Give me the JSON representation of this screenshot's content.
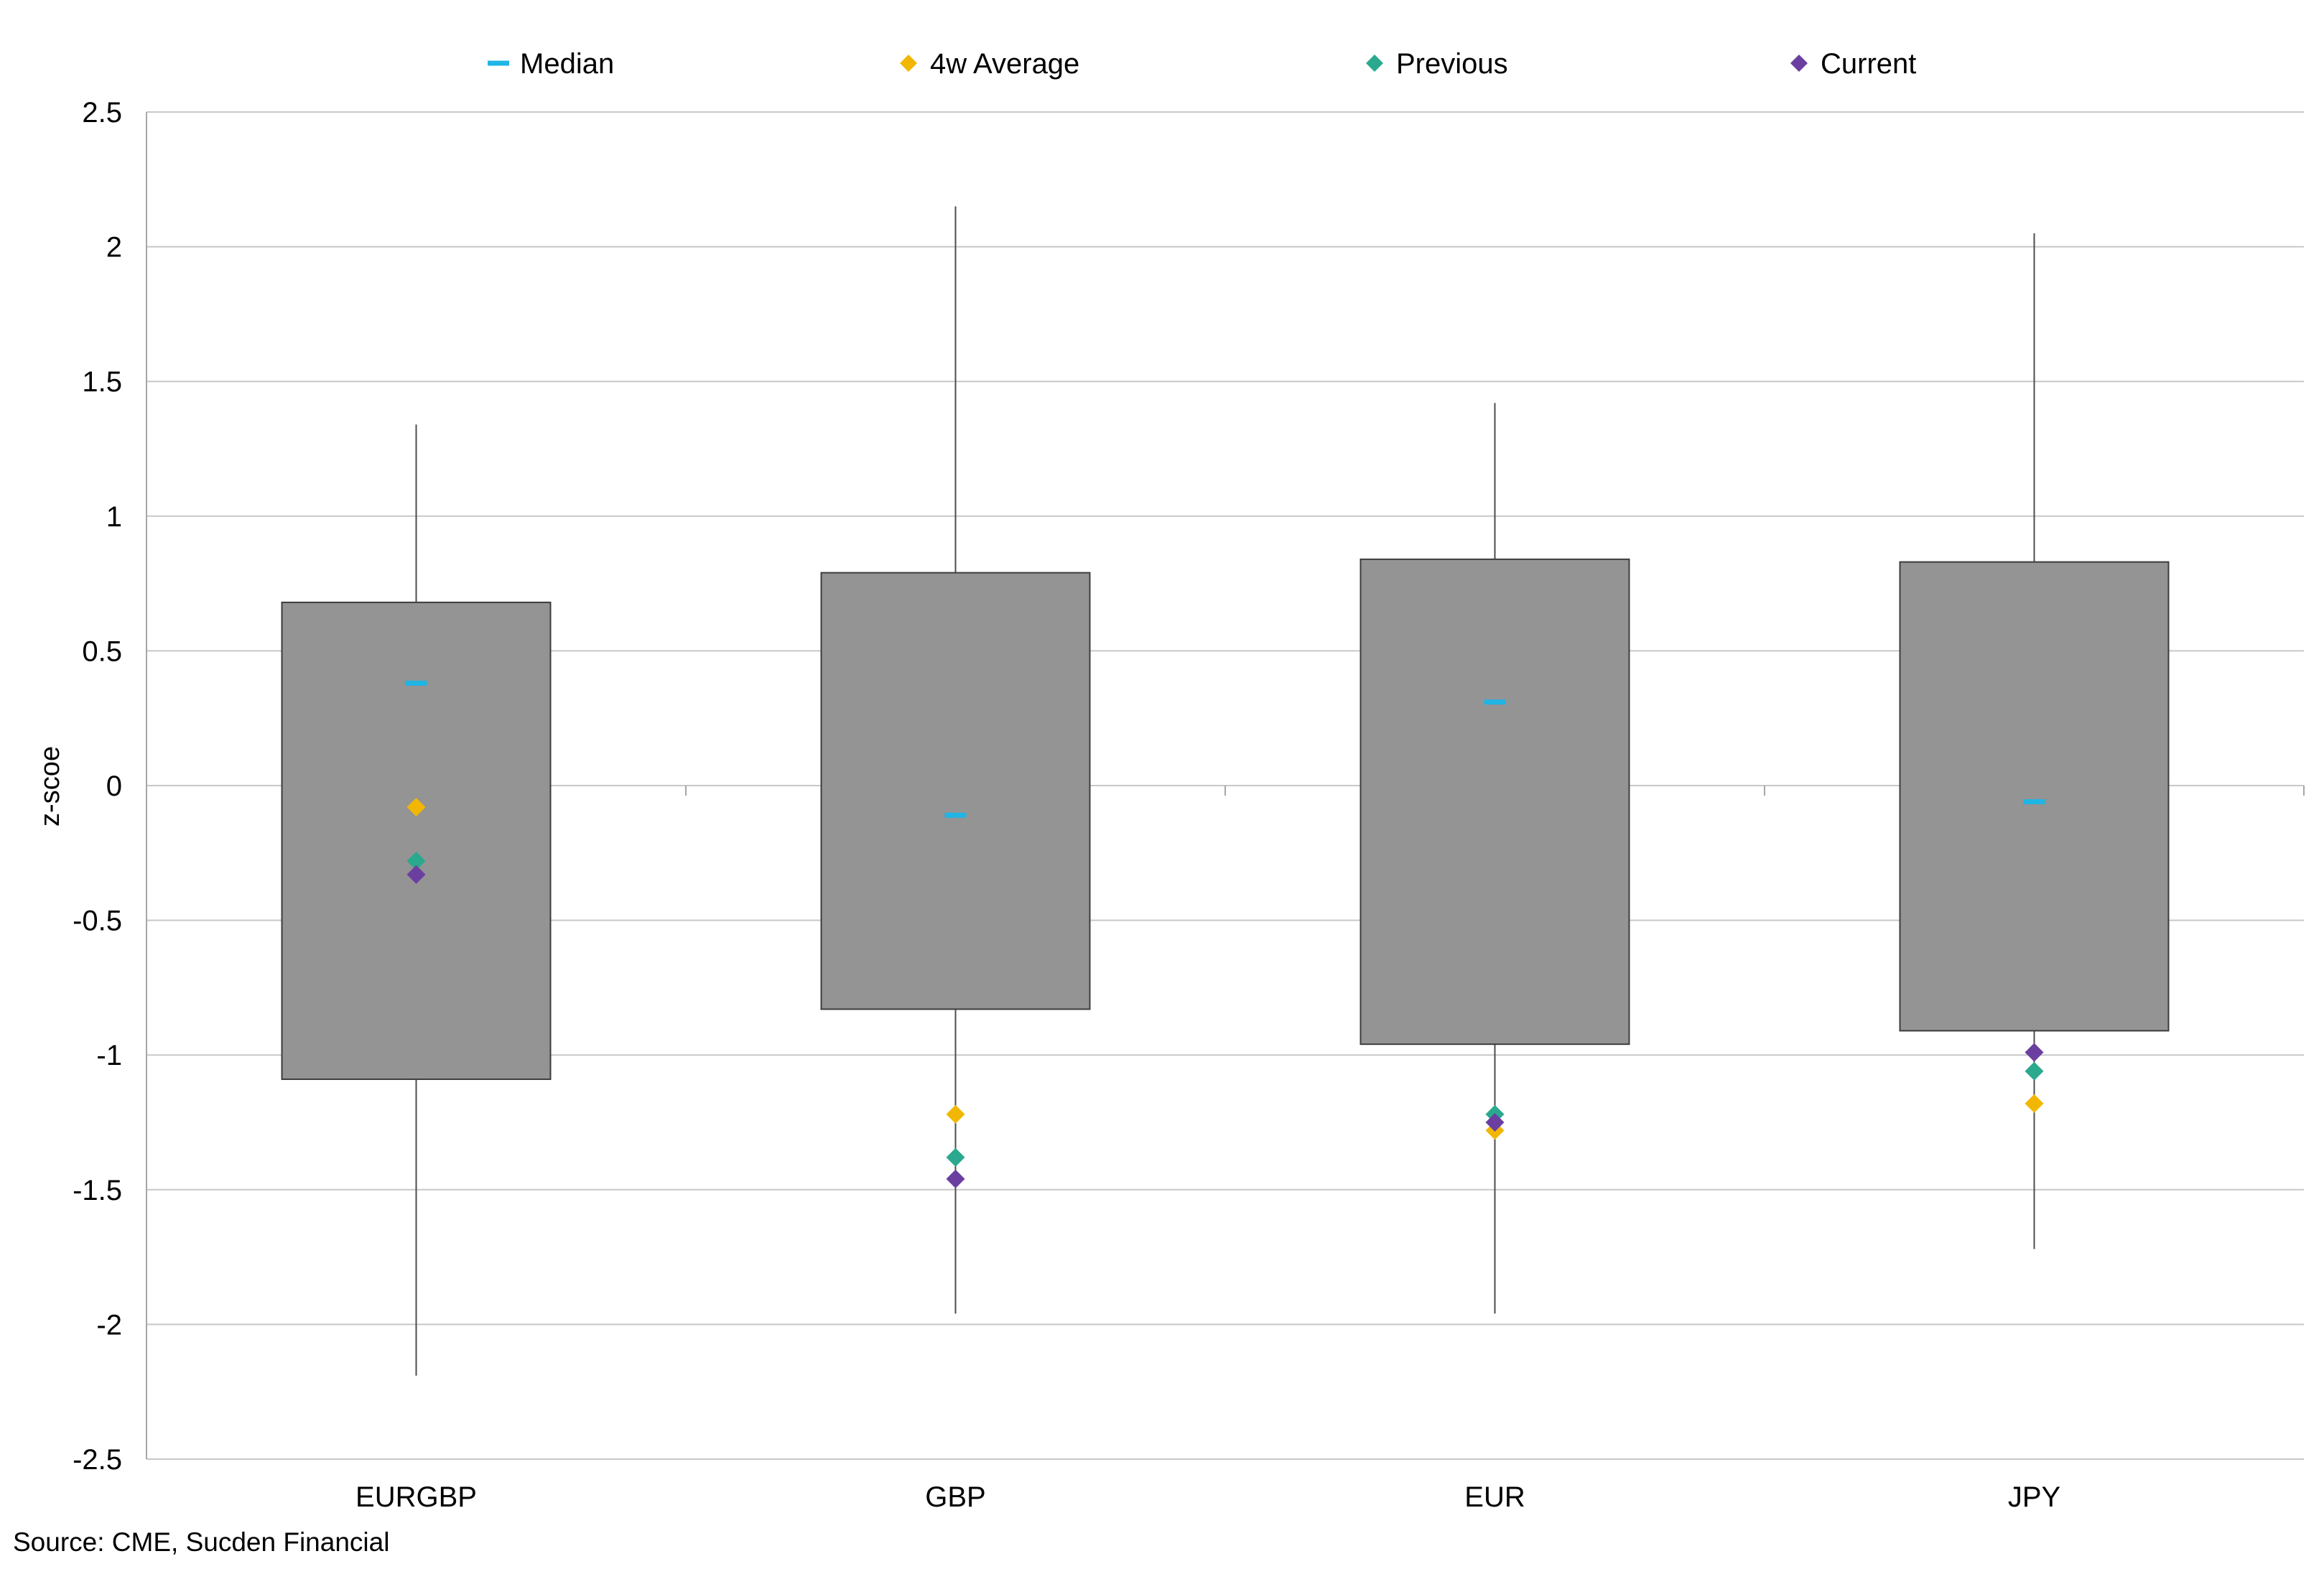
{
  "chart_data": {
    "type": "box",
    "title": "",
    "xlabel": "",
    "ylabel": "z-scoe",
    "ylim": [
      -2.5,
      2.5
    ],
    "yticks": [
      2.5,
      2,
      1.5,
      1,
      0.5,
      0,
      -0.5,
      -1,
      -1.5,
      -2,
      -2.5
    ],
    "ytick_labels": [
      "2.5",
      "2",
      "1.5",
      "1",
      "0.5",
      "0",
      "-0.5",
      "-1",
      "-1.5",
      "-2",
      "-2.5"
    ],
    "grid": "horizontal",
    "legend_position": "top",
    "categories": [
      "EURGBP",
      "GBP",
      "EUR",
      "JPY"
    ],
    "boxes": [
      {
        "category": "EURGBP",
        "min": -2.19,
        "q1": -1.09,
        "q3": 0.68,
        "max": 1.34
      },
      {
        "category": "GBP",
        "min": -1.96,
        "q1": -0.83,
        "q3": 0.79,
        "max": 2.15
      },
      {
        "category": "EUR",
        "min": -1.96,
        "q1": -0.96,
        "q3": 0.84,
        "max": 1.42
      },
      {
        "category": "JPY",
        "min": -1.72,
        "q1": -0.91,
        "q3": 0.83,
        "max": 2.05
      }
    ],
    "series": [
      {
        "name": "Median",
        "marker": "dash",
        "color": "#1fb5e5",
        "values": [
          0.38,
          -0.11,
          0.31,
          -0.06
        ]
      },
      {
        "name": "4w Average",
        "marker": "diamond",
        "color": "#f2b705",
        "values": [
          -0.08,
          -1.22,
          -1.28,
          -1.18
        ]
      },
      {
        "name": "Previous",
        "marker": "diamond",
        "color": "#2aa98e",
        "values": [
          -0.28,
          -1.38,
          -1.22,
          -1.06
        ]
      },
      {
        "name": "Current",
        "marker": "diamond",
        "color": "#6b3fa0",
        "values": [
          -0.33,
          -1.46,
          -1.25,
          -0.99
        ]
      }
    ],
    "colors": {
      "box_fill": "#949494",
      "box_stroke": "#3c3c3c",
      "whisker": "#4d4d4d",
      "grid": "#c8c8c8",
      "axis": "#a6a6a6"
    }
  },
  "source": "Source: CME, Sucden Financial"
}
